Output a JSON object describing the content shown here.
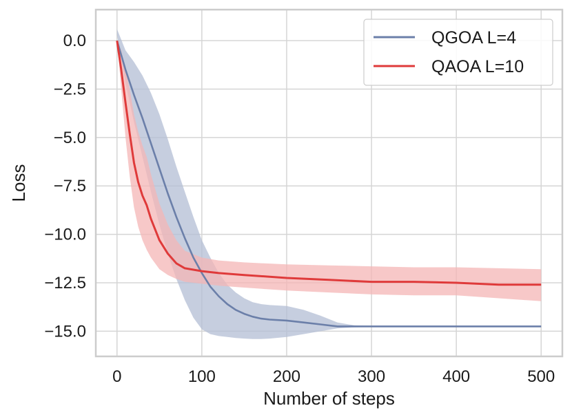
{
  "chart_data": {
    "type": "line",
    "title": "",
    "xlabel": "Number of steps",
    "ylabel": "Loss",
    "xlim": [
      -25,
      525
    ],
    "ylim": [
      -16.3,
      1.6
    ],
    "xticks": [
      0,
      100,
      200,
      300,
      400,
      500
    ],
    "xtick_labels": [
      "0",
      "100",
      "200",
      "300",
      "400",
      "500"
    ],
    "yticks": [
      0.0,
      -2.5,
      -5.0,
      -7.5,
      -10.0,
      -12.5,
      -15.0
    ],
    "ytick_labels": [
      "0.0",
      "−2.5",
      "−5.0",
      "−7.5",
      "−10.0",
      "−12.5",
      "−15.0"
    ],
    "grid": true,
    "legend_position": "top-right",
    "series": [
      {
        "name": "QGOA L=4",
        "color": "#6b7fa9",
        "band_color": "#b3bdd4",
        "x": [
          0,
          10,
          20,
          30,
          40,
          50,
          60,
          70,
          80,
          90,
          100,
          110,
          120,
          130,
          140,
          150,
          160,
          170,
          180,
          200,
          220,
          240,
          260,
          280,
          300,
          350,
          400,
          450,
          500
        ],
        "y": [
          0,
          -1.5,
          -2.8,
          -4.0,
          -5.3,
          -6.6,
          -7.9,
          -9.1,
          -10.2,
          -11.2,
          -12.0,
          -12.7,
          -13.2,
          -13.6,
          -13.9,
          -14.1,
          -14.25,
          -14.35,
          -14.4,
          -14.45,
          -14.55,
          -14.65,
          -14.75,
          -14.75,
          -14.75,
          -14.75,
          -14.75,
          -14.75,
          -14.75
        ],
        "lower": [
          0.3,
          -2.2,
          -4.2,
          -6.0,
          -7.8,
          -9.5,
          -11.0,
          -12.3,
          -13.4,
          -14.3,
          -14.9,
          -15.15,
          -15.25,
          -15.3,
          -15.35,
          -15.38,
          -15.4,
          -15.4,
          -15.38,
          -15.3,
          -15.15,
          -15.0,
          -14.85,
          -14.8,
          -14.78,
          -14.78,
          -14.78,
          -14.78,
          -14.78
        ],
        "upper": [
          0.6,
          -0.5,
          -1.1,
          -1.8,
          -2.7,
          -3.8,
          -5.1,
          -6.5,
          -7.8,
          -9.1,
          -10.3,
          -11.2,
          -12.0,
          -12.6,
          -13.0,
          -13.3,
          -13.5,
          -13.6,
          -13.65,
          -13.7,
          -13.9,
          -14.2,
          -14.55,
          -14.7,
          -14.72,
          -14.72,
          -14.72,
          -14.72,
          -14.72
        ]
      },
      {
        "name": "QAOA L=10",
        "color": "#df3a3a",
        "band_color": "#f4b6b6",
        "x": [
          0,
          5,
          10,
          15,
          20,
          25,
          30,
          35,
          40,
          50,
          60,
          70,
          80,
          100,
          120,
          150,
          200,
          250,
          300,
          350,
          400,
          450,
          500
        ],
        "y": [
          0,
          -1.5,
          -3.2,
          -4.8,
          -6.3,
          -7.3,
          -8.0,
          -8.5,
          -9.2,
          -10.3,
          -11.0,
          -11.5,
          -11.75,
          -11.9,
          -12.0,
          -12.1,
          -12.25,
          -12.35,
          -12.45,
          -12.45,
          -12.5,
          -12.6,
          -12.6
        ],
        "lower": [
          0,
          -2.5,
          -5.0,
          -7.0,
          -8.6,
          -9.6,
          -10.3,
          -10.8,
          -11.2,
          -11.8,
          -12.1,
          -12.3,
          -12.45,
          -12.55,
          -12.65,
          -12.75,
          -12.9,
          -13.0,
          -13.1,
          -13.15,
          -13.15,
          -13.3,
          -13.45
        ],
        "upper": [
          0,
          -0.5,
          -1.5,
          -2.5,
          -3.8,
          -4.7,
          -5.4,
          -6.0,
          -6.9,
          -8.4,
          -9.5,
          -10.3,
          -10.85,
          -11.2,
          -11.35,
          -11.45,
          -11.55,
          -11.6,
          -11.65,
          -11.7,
          -11.7,
          -11.75,
          -11.8
        ]
      }
    ]
  }
}
